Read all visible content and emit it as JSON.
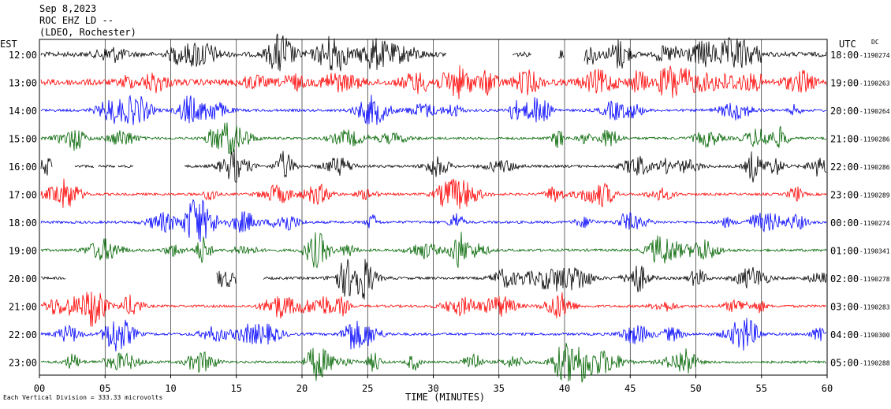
{
  "header": {
    "date": "Sep 8,2023",
    "station": "ROC EHZ LD --",
    "network": "(LDEO, Rochester)"
  },
  "left_axis_title": "EST",
  "right_axis_title": "UTC",
  "dc_label": "DC",
  "footer_note": "Each Vertical Division = 333.33 microvolts",
  "colors": {
    "black": "#000000",
    "red": "#ff0000",
    "blue": "#0000ff",
    "green": "#006400"
  },
  "chart_data": {
    "type": "line",
    "title": "",
    "xlabel": "TIME (MINUTES)",
    "xlim": [
      0,
      60
    ],
    "x_ticks": [
      "00",
      "05",
      "10",
      "15",
      "20",
      "25",
      "30",
      "35",
      "40",
      "45",
      "50",
      "55",
      "60"
    ],
    "rows": [
      {
        "est": "12:00",
        "utc": "18:00",
        "dc": "-1190274",
        "color": "black",
        "gaps": [
          [
            31,
            36
          ],
          [
            37.5,
            39.5
          ],
          [
            40,
            41.5
          ]
        ]
      },
      {
        "est": "13:00",
        "utc": "19:00",
        "dc": "-1190263",
        "color": "red",
        "gaps": []
      },
      {
        "est": "14:00",
        "utc": "20:00",
        "dc": "-1190264",
        "color": "blue",
        "gaps": []
      },
      {
        "est": "15:00",
        "utc": "21:00",
        "dc": "-1190286",
        "color": "green",
        "gaps": []
      },
      {
        "est": "16:00",
        "utc": "22:00",
        "dc": "-1190286",
        "color": "black",
        "gaps": [
          [
            1,
            2.7
          ],
          [
            4.2,
            4.5
          ],
          [
            5.8,
            6
          ],
          [
            7.2,
            11
          ]
        ]
      },
      {
        "est": "17:00",
        "utc": "23:00",
        "dc": "-1190289",
        "color": "red",
        "gaps": []
      },
      {
        "est": "18:00",
        "utc": "00:00",
        "dc": "-1190274",
        "color": "blue",
        "gaps": []
      },
      {
        "est": "19:00",
        "utc": "01:00",
        "dc": "-1190341",
        "color": "green",
        "gaps": []
      },
      {
        "est": "20:00",
        "utc": "02:00",
        "dc": "-1190278",
        "color": "black",
        "gaps": [
          [
            2,
            13.5
          ],
          [
            15,
            17
          ]
        ]
      },
      {
        "est": "21:00",
        "utc": "03:00",
        "dc": "-1190283",
        "color": "red",
        "gaps": []
      },
      {
        "est": "22:00",
        "utc": "04:00",
        "dc": "-1190300",
        "color": "blue",
        "gaps": []
      },
      {
        "est": "23:00",
        "utc": "05:00",
        "dc": "-1190288",
        "color": "green",
        "gaps": []
      }
    ]
  }
}
